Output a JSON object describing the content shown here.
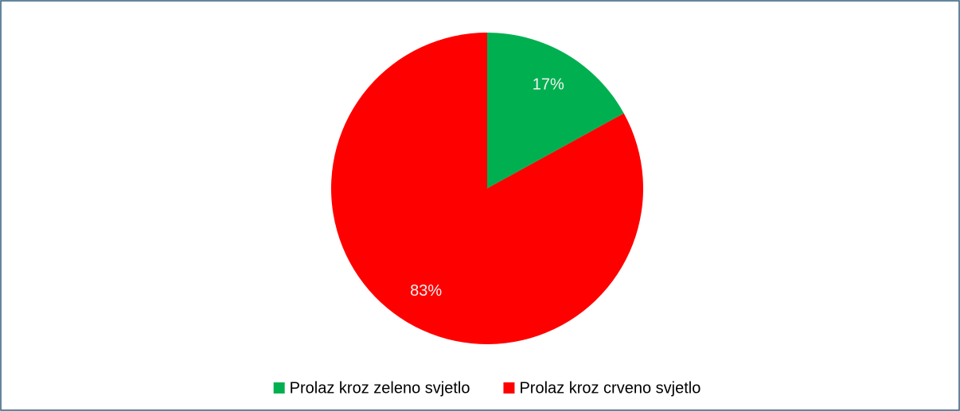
{
  "chart_data": {
    "type": "pie",
    "categories": [
      "Prolaz kroz zeleno svjetlo",
      "Prolaz kroz crveno svjetlo"
    ],
    "values": [
      17,
      83
    ],
    "value_labels": [
      "17%",
      "83%"
    ],
    "colors": [
      "#00b050",
      "#ff0000"
    ],
    "legend": "bottom"
  }
}
